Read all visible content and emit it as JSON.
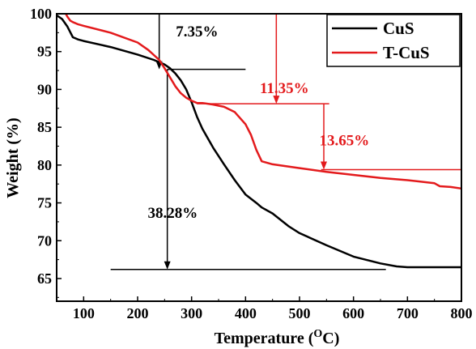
{
  "chart_data": {
    "type": "line",
    "xlabel": "Temperature (",
    "xlabel_sup": "O",
    "xlabel_unit": "C)",
    "ylabel": "Weight (%)",
    "xlim": [
      50,
      800
    ],
    "ylim": [
      62,
      100
    ],
    "xticks": [
      100,
      200,
      300,
      400,
      500,
      600,
      700,
      800
    ],
    "yticks": [
      65,
      70,
      75,
      80,
      85,
      90,
      95,
      100
    ],
    "grid": false,
    "legend_position": "top-right",
    "series": [
      {
        "name": "CuS",
        "color": "#000000",
        "x": [
          50,
          60,
          70,
          80,
          90,
          100,
          150,
          200,
          230,
          250,
          260,
          270,
          280,
          290,
          300,
          310,
          320,
          340,
          360,
          380,
          400,
          420,
          430,
          450,
          480,
          500,
          550,
          600,
          650,
          680,
          700,
          750,
          800
        ],
        "y": [
          99.8,
          99.3,
          98.3,
          96.9,
          96.6,
          96.4,
          95.6,
          94.6,
          93.9,
          93.3,
          92.8,
          92.1,
          91.2,
          90.0,
          88.3,
          86.4,
          84.8,
          82.3,
          80.1,
          78.0,
          76.1,
          75.0,
          74.4,
          73.6,
          71.9,
          71.0,
          69.4,
          67.9,
          67.0,
          66.6,
          66.5,
          66.5,
          66.5
        ]
      },
      {
        "name": "T-CuS",
        "color": "#e31a1c",
        "x": [
          67,
          70,
          75,
          80,
          90,
          100,
          150,
          200,
          220,
          240,
          250,
          260,
          270,
          280,
          290,
          300,
          310,
          320,
          340,
          360,
          380,
          400,
          410,
          420,
          430,
          450,
          500,
          550,
          600,
          650,
          700,
          750,
          760,
          780,
          800
        ],
        "y": [
          100,
          99.6,
          99.1,
          98.9,
          98.6,
          98.4,
          97.5,
          96.2,
          95.2,
          93.9,
          92.8,
          91.6,
          90.4,
          89.5,
          88.9,
          88.5,
          88.2,
          88.2,
          88.0,
          87.7,
          87.0,
          85.4,
          84.0,
          82.0,
          80.5,
          80.1,
          79.6,
          79.1,
          78.7,
          78.3,
          78.0,
          77.6,
          77.2,
          77.1,
          76.9
        ]
      }
    ],
    "annotations": [
      {
        "text": "7.35%",
        "color": "#000000",
        "x": 310,
        "y": 97
      },
      {
        "text": "11.35%",
        "color": "#e31a1c",
        "x": 472,
        "y": 89.5
      },
      {
        "text": "13.65%",
        "color": "#e31a1c",
        "x": 583,
        "y": 82.6
      },
      {
        "text": "38.28%",
        "color": "#000000",
        "x": 265,
        "y": 73
      }
    ],
    "reference_lines": [
      {
        "color": "#000000",
        "x1": 255,
        "x2": 400,
        "y1": 92.65,
        "y2": 92.65
      },
      {
        "color": "#000000",
        "x1": 150,
        "x2": 660,
        "y1": 66.2,
        "y2": 66.2
      },
      {
        "color": "#e31a1c",
        "x1": 310,
        "x2": 555,
        "y1": 88.1,
        "y2": 88.1
      },
      {
        "color": "#e31a1c",
        "x1": 540,
        "x2": 800,
        "y1": 79.4,
        "y2": 79.4
      }
    ],
    "arrows": [
      {
        "color": "#000000",
        "x": 240,
        "y_from": 100,
        "y_to": 92.65
      },
      {
        "color": "#000000",
        "x": 255,
        "y_from": 92.65,
        "y_to": 66.2
      },
      {
        "color": "#e31a1c",
        "x": 457,
        "y_from": 100,
        "y_to": 88.1
      },
      {
        "color": "#e31a1c",
        "x": 545,
        "y_from": 88.1,
        "y_to": 79.4
      }
    ]
  }
}
